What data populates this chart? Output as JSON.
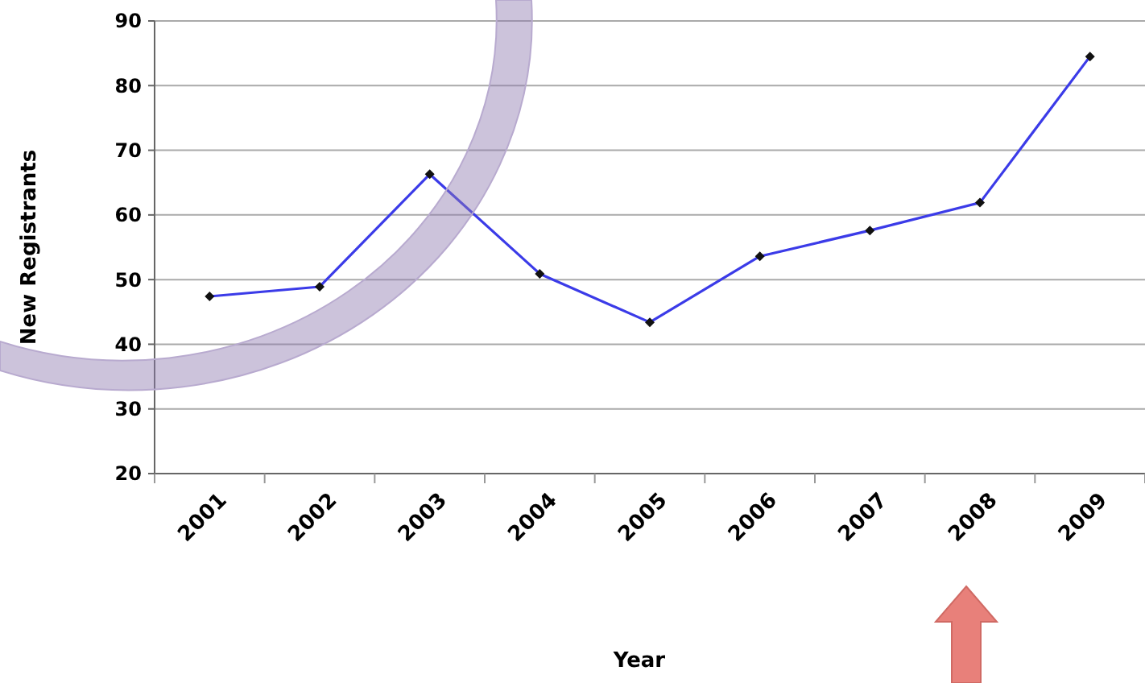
{
  "chart_data": {
    "type": "line",
    "xlabel": "Year",
    "ylabel": "New Registrants",
    "categories": [
      "2001",
      "2002",
      "2003",
      "2004",
      "2005",
      "2006",
      "2007",
      "2008",
      "2009"
    ],
    "series": [
      {
        "color": "#3b3be8",
        "values": [
          47.4,
          48.9,
          66.3,
          50.9,
          43.4,
          53.6,
          57.6,
          61.9,
          84.5
        ]
      }
    ],
    "ylim": [
      20,
      90
    ],
    "yticks": [
      20,
      30,
      40,
      50,
      60,
      70,
      80,
      90
    ],
    "grid": "y",
    "marker": "diamond",
    "line_style": "solid"
  }
}
